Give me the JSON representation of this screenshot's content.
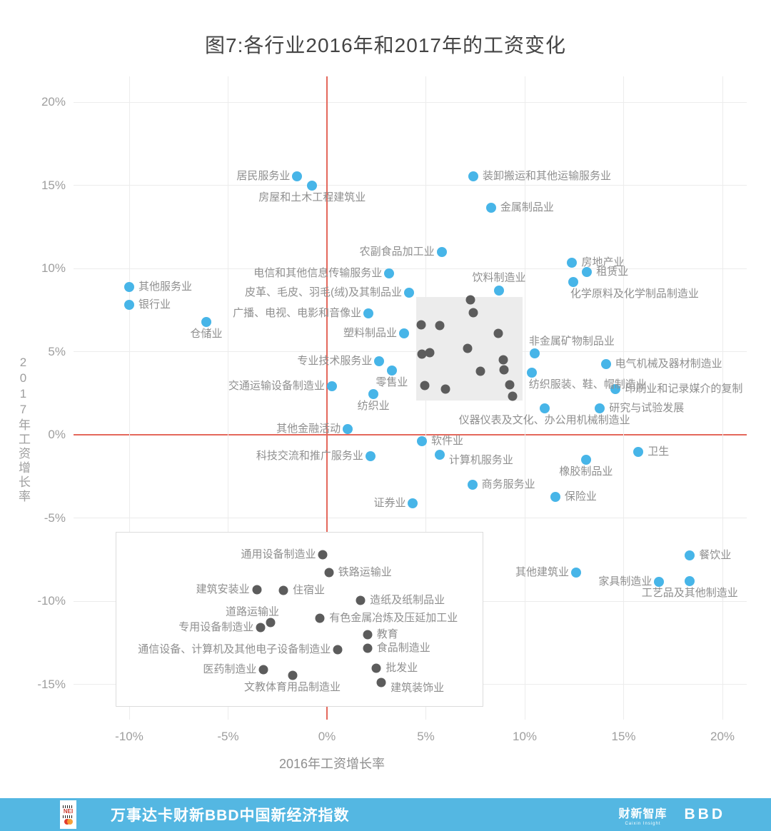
{
  "chart_data": {
    "type": "scatter",
    "title": "图7:各行业2016年和2017年的工资变化",
    "xlabel": "2016年工资增长率",
    "ylabel": "2017年工资增长率",
    "x_ticks": [
      -10,
      -5,
      0,
      5,
      10,
      15,
      20
    ],
    "y_ticks": [
      20,
      15,
      10,
      5,
      0,
      -5,
      -10,
      -15
    ],
    "tick_suffix": "%",
    "xlim": [
      -12.8,
      21.2
    ],
    "ylim": [
      -17.1,
      21.5
    ],
    "grid": true,
    "legend": "none",
    "grid_color": "#ececec",
    "zero_line_color": "#e4685c",
    "series": [
      {
        "name": "industries-labeled-blue",
        "color": "#47b5e8",
        "dot_size": 14,
        "points": [
          {
            "x": -10.0,
            "y": 8.9,
            "label": "其他服务业",
            "anchor": "right"
          },
          {
            "x": -10.0,
            "y": 7.8,
            "label": "银行业",
            "anchor": "right"
          },
          {
            "x": -6.1,
            "y": 6.8,
            "label": "仓储业",
            "anchor": "below"
          },
          {
            "x": -1.5,
            "y": 15.55,
            "label": "居民服务业",
            "anchor": "left"
          },
          {
            "x": -0.75,
            "y": 15.0,
            "label": "房屋和土木工程建筑业",
            "anchor": "below"
          },
          {
            "x": 7.4,
            "y": 15.55,
            "label": "装卸搬运和其他运输服务业",
            "anchor": "right"
          },
          {
            "x": 8.3,
            "y": 13.65,
            "label": "金属制品业",
            "anchor": "right"
          },
          {
            "x": 5.8,
            "y": 11.0,
            "label": "农副食品加工业",
            "anchor": "left"
          },
          {
            "x": 12.4,
            "y": 10.35,
            "label": "房地产业",
            "anchor": "right"
          },
          {
            "x": 13.15,
            "y": 9.8,
            "label": "租赁业",
            "anchor": "right"
          },
          {
            "x": 12.45,
            "y": 9.2,
            "label": "化学原料及化学制品制造业",
            "anchor": "below-right"
          },
          {
            "x": 3.15,
            "y": 9.7,
            "label": "电信和其他信息传输服务业",
            "anchor": "left"
          },
          {
            "x": 4.15,
            "y": 8.55,
            "label": "皮革、毛皮、羽毛(绒)及其制品业",
            "anchor": "left"
          },
          {
            "x": 8.7,
            "y": 8.65,
            "label": "饮料制造业",
            "anchor": "above"
          },
          {
            "x": 2.1,
            "y": 7.3,
            "label": "广播、电视、电影和音像业",
            "anchor": "left"
          },
          {
            "x": 3.9,
            "y": 6.1,
            "label": "塑料制品业",
            "anchor": "left"
          },
          {
            "x": 10.5,
            "y": 4.9,
            "label": "非金属矿物制品业",
            "anchor": "above-right"
          },
          {
            "x": 2.65,
            "y": 4.4,
            "label": "专业技术服务业",
            "anchor": "left"
          },
          {
            "x": 14.1,
            "y": 4.25,
            "label": "电气机械及器材制造业",
            "anchor": "right"
          },
          {
            "x": 3.3,
            "y": 3.85,
            "label": "零售业",
            "anchor": "below-left"
          },
          {
            "x": 10.35,
            "y": 3.75,
            "label": "纺织服装、鞋、帽制造业",
            "anchor": "below-right"
          },
          {
            "x": 0.25,
            "y": 2.9,
            "label": "交通运输设备制造业",
            "anchor": "left"
          },
          {
            "x": 14.6,
            "y": 2.75,
            "label": "印刷业和记录媒介的复制",
            "anchor": "right"
          },
          {
            "x": 2.35,
            "y": 2.45,
            "label": "纺织业",
            "anchor": "below"
          },
          {
            "x": 13.8,
            "y": 1.6,
            "label": "研究与试验发展",
            "anchor": "right"
          },
          {
            "x": 11.0,
            "y": 1.6,
            "label": "仪器仪表及文化、办公用机械制造业",
            "anchor": "below"
          },
          {
            "x": 1.05,
            "y": 0.35,
            "label": "其他金融活动",
            "anchor": "left"
          },
          {
            "x": 4.8,
            "y": -0.4,
            "label": "软件业",
            "anchor": "right"
          },
          {
            "x": 2.2,
            "y": -1.3,
            "label": "科技交流和推广服务业",
            "anchor": "left"
          },
          {
            "x": 5.7,
            "y": -1.2,
            "label": "计算机服务业",
            "anchor": "right-below"
          },
          {
            "x": 15.75,
            "y": -1.05,
            "label": "卫生",
            "anchor": "right"
          },
          {
            "x": 13.1,
            "y": -1.5,
            "label": "橡胶制品业",
            "anchor": "below"
          },
          {
            "x": 7.35,
            "y": -3.0,
            "label": "商务服务业",
            "anchor": "right"
          },
          {
            "x": 11.55,
            "y": -3.75,
            "label": "保险业",
            "anchor": "right"
          },
          {
            "x": 4.35,
            "y": -4.1,
            "label": "证券业",
            "anchor": "left"
          },
          {
            "x": 18.35,
            "y": -7.25,
            "label": "餐饮业",
            "anchor": "right"
          },
          {
            "x": 12.6,
            "y": -8.3,
            "label": "其他建筑业",
            "anchor": "left"
          },
          {
            "x": 16.8,
            "y": -8.85,
            "label": "家具制造业",
            "anchor": "left"
          },
          {
            "x": 18.35,
            "y": -8.8,
            "label": "工艺品及其他制造业",
            "anchor": "below"
          }
        ]
      },
      {
        "name": "industries-labeled-gray",
        "color": "#5c5c5c",
        "dot_size": 13,
        "points": [
          {
            "x": -0.2,
            "y": -7.2,
            "label": "通用设备制造业",
            "anchor": "left"
          },
          {
            "x": 0.1,
            "y": -8.3,
            "label": "铁路运输业",
            "anchor": "right"
          },
          {
            "x": -3.55,
            "y": -9.3,
            "label": "建筑安装业",
            "anchor": "left"
          },
          {
            "x": -2.2,
            "y": -9.35,
            "label": "住宿业",
            "anchor": "right"
          },
          {
            "x": 1.7,
            "y": -9.95,
            "label": "造纸及纸制品业",
            "anchor": "right"
          },
          {
            "x": -2.85,
            "y": -11.3,
            "label": "道路运输业",
            "anchor": "above-left"
          },
          {
            "x": -0.35,
            "y": -11.05,
            "label": "有色金属冶炼及压延加工业",
            "anchor": "right"
          },
          {
            "x": -3.35,
            "y": -11.6,
            "label": "专用设备制造业",
            "anchor": "left"
          },
          {
            "x": 2.05,
            "y": -12.0,
            "label": "教育",
            "anchor": "right"
          },
          {
            "x": 0.55,
            "y": -12.9,
            "label": "通信设备、计算机及其他电子设备制造业",
            "anchor": "left"
          },
          {
            "x": 2.05,
            "y": -12.85,
            "label": "食品制造业",
            "anchor": "right"
          },
          {
            "x": -3.2,
            "y": -14.1,
            "label": "医药制造业",
            "anchor": "left"
          },
          {
            "x": 2.5,
            "y": -14.05,
            "label": "批发业",
            "anchor": "right"
          },
          {
            "x": -1.75,
            "y": -14.45,
            "label": "文教体育用品制造业",
            "anchor": "below"
          },
          {
            "x": 2.75,
            "y": -14.9,
            "label": "建筑装饰业",
            "anchor": "right-below"
          }
        ]
      },
      {
        "name": "industries-unlabeled-gray",
        "color": "#5c5c5c",
        "dot_size": 13,
        "points": [
          {
            "x": 7.25,
            "y": 8.1
          },
          {
            "x": 7.4,
            "y": 7.35
          },
          {
            "x": 4.75,
            "y": 6.6
          },
          {
            "x": 5.7,
            "y": 6.55
          },
          {
            "x": 8.65,
            "y": 6.1
          },
          {
            "x": 7.1,
            "y": 5.2
          },
          {
            "x": 4.8,
            "y": 4.85
          },
          {
            "x": 5.2,
            "y": 4.95
          },
          {
            "x": 8.9,
            "y": 4.5
          },
          {
            "x": 7.75,
            "y": 3.8
          },
          {
            "x": 8.95,
            "y": 3.9
          },
          {
            "x": 4.95,
            "y": 2.95
          },
          {
            "x": 6.0,
            "y": 2.75
          },
          {
            "x": 9.25,
            "y": 3.0
          },
          {
            "x": 9.4,
            "y": 2.3
          }
        ]
      }
    ],
    "regions": [
      {
        "name": "gray-highlight-box",
        "x1": 4.5,
        "x2": 9.9,
        "y1": 2.05,
        "y2": 8.3,
        "fill": "#ececec",
        "border": "none"
      },
      {
        "name": "white-callout-box",
        "x1": -10.7,
        "x2": 7.85,
        "y1": -16.25,
        "y2": -5.85,
        "fill": "#ffffff",
        "border": "#dcdcdc"
      }
    ]
  },
  "footer": {
    "bar_color": "#54b7e2",
    "logo_text": "NEI",
    "title": "万事达卡财新BBD中国新经济指数",
    "brands": [
      {
        "name": "财新智库",
        "sub": "Caixin Insight"
      },
      {
        "name": "BBD"
      }
    ]
  }
}
